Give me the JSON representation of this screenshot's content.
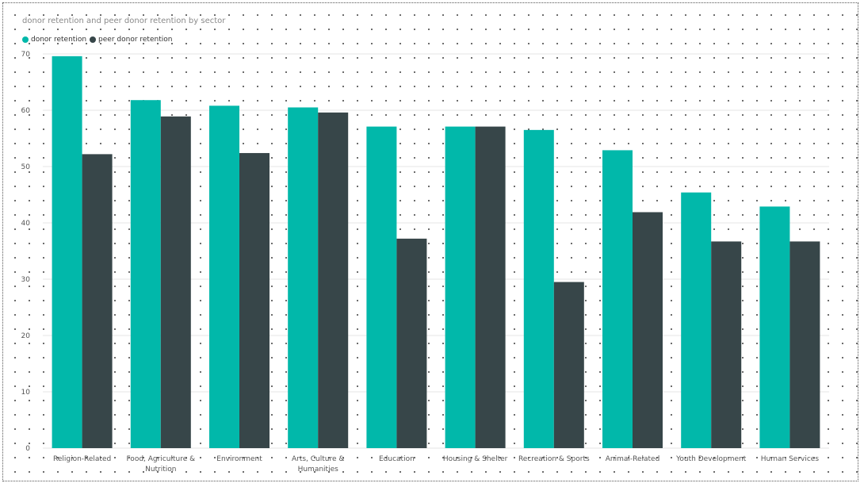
{
  "chart_data": {
    "type": "bar",
    "title": "donor retention and peer donor retention by sector",
    "categories": [
      "Religion-Related",
      "Food, Agriculture & Nutrition",
      "Environment",
      "Arts, Culture & Humanities",
      "Education",
      "Housing & Shelter",
      "Recreation & Sports",
      "Animal-Related",
      "Youth Development",
      "Human Services"
    ],
    "category_label_lines": [
      [
        "Religion-Related"
      ],
      [
        "Food, Agriculture &",
        "Nutrition"
      ],
      [
        "Environment"
      ],
      [
        "Arts, Culture &",
        "Humanities"
      ],
      [
        "Education"
      ],
      [
        "Housing & Shelter"
      ],
      [
        "Recreation & Sports"
      ],
      [
        "Animal-Related"
      ],
      [
        "Youth Development"
      ],
      [
        "Human Services"
      ]
    ],
    "series": [
      {
        "name": "donor retention",
        "color": "#01B8AA",
        "values": [
          69.6,
          61.8,
          60.8,
          60.5,
          57.1,
          57.1,
          56.5,
          52.9,
          45.4,
          42.9
        ]
      },
      {
        "name": "peer donor retention",
        "color": "#374649",
        "values": [
          52.2,
          58.9,
          52.4,
          59.6,
          37.2,
          57.1,
          29.5,
          41.9,
          36.7,
          36.7
        ]
      }
    ],
    "ylim": [
      0,
      70
    ],
    "yticks": [
      0,
      10,
      20,
      30,
      40,
      50,
      60,
      70
    ],
    "xlabel": "",
    "ylabel": "",
    "grid": true,
    "legend_position": "top-left"
  }
}
